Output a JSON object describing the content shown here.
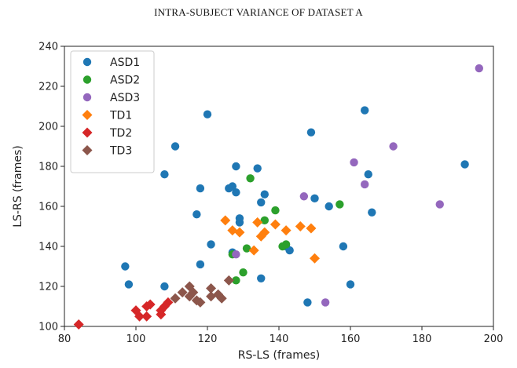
{
  "chart_data": {
    "type": "scatter",
    "title": "INTRA-SUBJECT VARIANCE OF DATASET A",
    "xlabel": "RS-LS (frames)",
    "ylabel": "LS-RS (frames)",
    "xlim": [
      80,
      200
    ],
    "ylim": [
      100,
      240
    ],
    "xticks": [
      80,
      100,
      120,
      140,
      160,
      180,
      200
    ],
    "yticks": [
      100,
      120,
      140,
      160,
      180,
      200,
      220,
      240
    ],
    "grid": false,
    "legend_position": "top-left",
    "series": [
      {
        "name": "ASD1",
        "marker": "circle",
        "color": "#1f77b4",
        "points": [
          [
            97,
            130
          ],
          [
            98,
            121
          ],
          [
            108,
            120
          ],
          [
            108,
            176
          ],
          [
            111,
            190
          ],
          [
            117,
            156
          ],
          [
            118,
            169
          ],
          [
            118,
            131
          ],
          [
            120,
            206
          ],
          [
            121,
            141
          ],
          [
            126,
            169
          ],
          [
            127,
            137
          ],
          [
            127,
            170
          ],
          [
            128,
            167
          ],
          [
            128,
            180
          ],
          [
            129,
            152
          ],
          [
            129,
            154
          ],
          [
            134,
            179
          ],
          [
            135,
            162
          ],
          [
            135,
            124
          ],
          [
            136,
            166
          ],
          [
            142,
            140
          ],
          [
            143,
            138
          ],
          [
            148,
            112
          ],
          [
            149,
            197
          ],
          [
            150,
            164
          ],
          [
            154,
            160
          ],
          [
            158,
            140
          ],
          [
            160,
            121
          ],
          [
            164,
            208
          ],
          [
            165,
            176
          ],
          [
            166,
            157
          ],
          [
            192,
            181
          ]
        ]
      },
      {
        "name": "ASD2",
        "marker": "circle",
        "color": "#2ca02c",
        "points": [
          [
            127,
            136
          ],
          [
            128,
            123
          ],
          [
            130,
            127
          ],
          [
            131,
            139
          ],
          [
            132,
            174
          ],
          [
            136,
            153
          ],
          [
            139,
            158
          ],
          [
            141,
            140
          ],
          [
            142,
            141
          ],
          [
            157,
            161
          ]
        ]
      },
      {
        "name": "ASD3",
        "marker": "circle",
        "color": "#9467bd",
        "points": [
          [
            128,
            136
          ],
          [
            147,
            165
          ],
          [
            153,
            112
          ],
          [
            161,
            182
          ],
          [
            164,
            171
          ],
          [
            172,
            190
          ],
          [
            185,
            161
          ],
          [
            196,
            229
          ]
        ]
      },
      {
        "name": "TD1",
        "marker": "diamond",
        "color": "#ff7f0e",
        "points": [
          [
            125,
            153
          ],
          [
            127,
            148
          ],
          [
            129,
            147
          ],
          [
            133,
            138
          ],
          [
            134,
            152
          ],
          [
            135,
            145
          ],
          [
            136,
            147
          ],
          [
            139,
            151
          ],
          [
            142,
            148
          ],
          [
            146,
            150
          ],
          [
            149,
            149
          ],
          [
            150,
            134
          ]
        ]
      },
      {
        "name": "TD2",
        "marker": "diamond",
        "color": "#d62728",
        "points": [
          [
            84,
            101
          ],
          [
            100,
            108
          ],
          [
            101,
            105
          ],
          [
            103,
            105
          ],
          [
            103,
            110
          ],
          [
            104,
            111
          ],
          [
            107,
            106
          ],
          [
            107,
            108
          ],
          [
            108,
            110
          ],
          [
            109,
            112
          ]
        ]
      },
      {
        "name": "TD3",
        "marker": "diamond",
        "color": "#8c564b",
        "points": [
          [
            111,
            114
          ],
          [
            113,
            117
          ],
          [
            115,
            120
          ],
          [
            115,
            115
          ],
          [
            116,
            117
          ],
          [
            117,
            113
          ],
          [
            118,
            112
          ],
          [
            121,
            119
          ],
          [
            121,
            115
          ],
          [
            123,
            116
          ],
          [
            124,
            114
          ],
          [
            126,
            123
          ]
        ]
      }
    ]
  }
}
